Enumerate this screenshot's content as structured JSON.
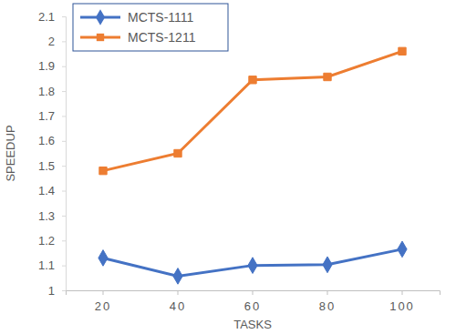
{
  "chart_data": {
    "type": "line",
    "x_label": "TASKS",
    "y_label": "SPEEDUP",
    "categories": [
      "20",
      "40",
      "60",
      "80",
      "100"
    ],
    "series": [
      {
        "name": "MCTS-1111",
        "color": "#4472c4",
        "marker": "diamond",
        "values": [
          1.13,
          1.057,
          1.1,
          1.103,
          1.165
        ]
      },
      {
        "name": "MCTS-1211",
        "color": "#ed7d31",
        "marker": "square",
        "values": [
          1.48,
          1.55,
          1.845,
          1.857,
          1.96
        ]
      }
    ],
    "ylim": [
      1,
      2.1
    ],
    "yticks": [
      1,
      1.1,
      1.2,
      1.3,
      1.4,
      1.5,
      1.6,
      1.7,
      1.8,
      1.9,
      2,
      2.1
    ],
    "grid": false,
    "legend": "top-left"
  }
}
